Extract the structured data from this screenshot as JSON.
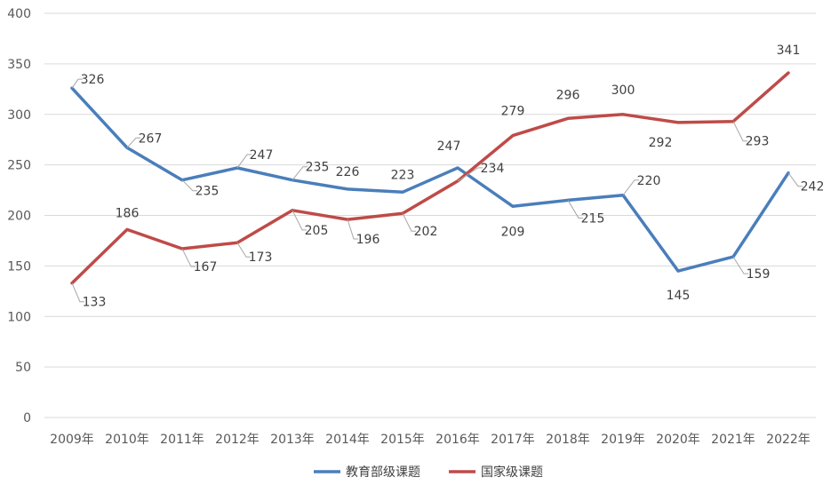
{
  "chart_data": {
    "type": "line",
    "categories": [
      "2009年",
      "2010年",
      "2011年",
      "2012年",
      "2013年",
      "2014年",
      "2015年",
      "2016年",
      "2017年",
      "2018年",
      "2019年",
      "2020年",
      "2021年",
      "2022年"
    ],
    "series": [
      {
        "name": "教育部级课题",
        "color": "#4a7ebb",
        "values": [
          326,
          267,
          235,
          247,
          235,
          226,
          223,
          247,
          209,
          215,
          220,
          145,
          159,
          242
        ]
      },
      {
        "name": "国家级课题",
        "color": "#be4b48",
        "values": [
          133,
          186,
          167,
          173,
          205,
          196,
          202,
          234,
          279,
          296,
          300,
          292,
          293,
          341
        ]
      }
    ],
    "yticks": [
      0,
      50,
      100,
      150,
      200,
      250,
      300,
      350,
      400
    ],
    "ylim": [
      0,
      400
    ],
    "grid": true,
    "legend_position": "bottom"
  }
}
